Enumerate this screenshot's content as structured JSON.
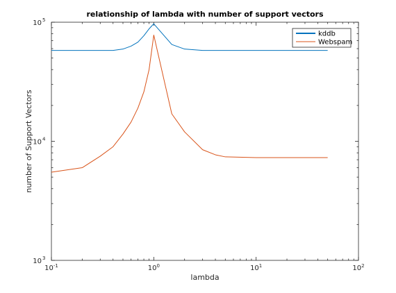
{
  "chart_data": {
    "type": "line",
    "title": "relationship of lambda with number of support vectors",
    "xlabel": "lambda",
    "ylabel": "number of Support Vectors",
    "xscale": "log",
    "yscale": "log",
    "xlim": [
      0.1,
      100
    ],
    "ylim": [
      1000,
      100000
    ],
    "grid": false,
    "legend_position": "top-right",
    "x_ticks": [
      {
        "value": 0.1,
        "base": "10",
        "exp": "-1"
      },
      {
        "value": 1,
        "base": "10",
        "exp": "0"
      },
      {
        "value": 10,
        "base": "10",
        "exp": "1"
      },
      {
        "value": 100,
        "base": "10",
        "exp": "2"
      }
    ],
    "y_ticks": [
      {
        "value": 1000,
        "base": "10",
        "exp": "3"
      },
      {
        "value": 10000,
        "base": "10",
        "exp": "4"
      },
      {
        "value": 100000,
        "base": "10",
        "exp": "5"
      }
    ],
    "series": [
      {
        "name": "kddb",
        "color": "#0072BD",
        "legend_line_width": 2,
        "points": [
          [
            0.1,
            58000
          ],
          [
            0.2,
            58000
          ],
          [
            0.3,
            58000
          ],
          [
            0.4,
            58000
          ],
          [
            0.5,
            59500
          ],
          [
            0.6,
            63000
          ],
          [
            0.7,
            68000
          ],
          [
            0.8,
            77000
          ],
          [
            0.9,
            88000
          ],
          [
            1.0,
            97000
          ],
          [
            1.5,
            65000
          ],
          [
            2.0,
            59500
          ],
          [
            3.0,
            58000
          ],
          [
            5.0,
            58000
          ],
          [
            10.0,
            58000
          ],
          [
            20.0,
            58000
          ],
          [
            50.0,
            58000
          ]
        ]
      },
      {
        "name": "Webspam",
        "color": "#D95319",
        "legend_line_width": 1,
        "points": [
          [
            0.1,
            5500
          ],
          [
            0.2,
            6000
          ],
          [
            0.3,
            7500
          ],
          [
            0.4,
            9000
          ],
          [
            0.5,
            11500
          ],
          [
            0.6,
            14500
          ],
          [
            0.7,
            19000
          ],
          [
            0.8,
            26000
          ],
          [
            0.9,
            40000
          ],
          [
            1.0,
            78000
          ],
          [
            1.5,
            17000
          ],
          [
            2.0,
            12000
          ],
          [
            3.0,
            8500
          ],
          [
            4.0,
            7700
          ],
          [
            5.0,
            7400
          ],
          [
            10.0,
            7300
          ],
          [
            20.0,
            7300
          ],
          [
            50.0,
            7300
          ]
        ]
      }
    ]
  }
}
